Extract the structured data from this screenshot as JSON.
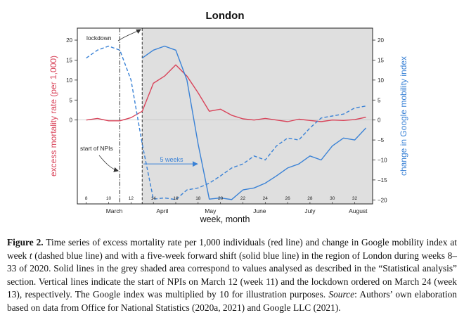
{
  "chart_data": {
    "type": "line",
    "title": "London",
    "xlabel": "week, month",
    "ylabel_left": "excess mortality rate (per 1,000)",
    "ylabel_right": "change in Google mobility index",
    "x_range": [
      7.2,
      33.6
    ],
    "ylim_left": [
      -21,
      23
    ],
    "ylim_right": [
      -21,
      23
    ],
    "left_ticks": [
      "0",
      "5",
      "10",
      "15",
      "20"
    ],
    "right_ticks": [
      "-20",
      "-15",
      "-10",
      "-5",
      "0",
      "5",
      "10",
      "15",
      "20"
    ],
    "week_ticks": [
      "8",
      "10",
      "12",
      "14",
      "16",
      "18",
      "20",
      "22",
      "24",
      "26",
      "28",
      "30",
      "32"
    ],
    "months": [
      {
        "label": "March",
        "x": 10.5
      },
      {
        "label": "April",
        "x": 14.8
      },
      {
        "label": "May",
        "x": 19.1
      },
      {
        "label": "June",
        "x": 23.5
      },
      {
        "label": "July",
        "x": 28.0
      },
      {
        "label": "August",
        "x": 32.3
      }
    ],
    "shade_start_week": 13,
    "vlines": [
      {
        "week": 11,
        "label": "start of NPIs",
        "style": "dashdot"
      },
      {
        "week": 13,
        "label": "lockdown",
        "style": "dashed"
      }
    ],
    "shift_annotation": "5 weeks",
    "shift_from": 13,
    "shift_to": 18,
    "shift_level": -11,
    "series": [
      {
        "name": "excess mortality rate",
        "color": "#d9445a",
        "style": "solid",
        "x": [
          8,
          9,
          10,
          11,
          12,
          13,
          14,
          15,
          16,
          17,
          18,
          19,
          20,
          21,
          22,
          23,
          24,
          25,
          26,
          27,
          28,
          29,
          30,
          31,
          32,
          33
        ],
        "values": [
          0.0,
          0.4,
          -0.2,
          -0.2,
          0.6,
          2.2,
          9.2,
          11.0,
          13.8,
          11.0,
          6.8,
          2.2,
          2.7,
          1.2,
          0.3,
          0.0,
          0.4,
          0.0,
          -0.4,
          0.2,
          -0.1,
          -0.4,
          0.0,
          -0.1,
          0.1,
          0.7
        ]
      },
      {
        "name": "Google mobility index (week t)",
        "color": "#3a82d6",
        "style": "dashed",
        "x": [
          8,
          9,
          10,
          11,
          12,
          13,
          14,
          15,
          16,
          17,
          18,
          19,
          20,
          21,
          22,
          23,
          24,
          25,
          26,
          27,
          28,
          29,
          30,
          31,
          32,
          33
        ],
        "values": [
          15.5,
          17.5,
          18.5,
          17.5,
          10.0,
          -6.0,
          -19.8,
          -19.5,
          -19.9,
          -17.5,
          -17.0,
          -15.8,
          -14.0,
          -12.0,
          -11.0,
          -9.0,
          -10.0,
          -6.5,
          -4.5,
          -5.0,
          -2.0,
          0.5,
          1.0,
          1.5,
          3.0,
          3.5
        ]
      },
      {
        "name": "Google mobility index (shifted 5 weeks)",
        "color": "#3a82d6",
        "style": "solid",
        "x": [
          13,
          14,
          15,
          16,
          17,
          18,
          19,
          20,
          21,
          22,
          23,
          24,
          25,
          26,
          27,
          28,
          29,
          30,
          31,
          32,
          33
        ],
        "values": [
          15.5,
          17.5,
          18.5,
          17.5,
          10.0,
          -6.0,
          -19.8,
          -19.5,
          -19.9,
          -17.5,
          -17.0,
          -15.8,
          -14.0,
          -12.0,
          -11.0,
          -9.0,
          -10.0,
          -6.5,
          -4.5,
          -5.0,
          -2.0
        ]
      }
    ]
  },
  "caption": {
    "label": "Figure 2.",
    "text_1": "Time series of excess mortality rate per 1,000 individuals (red line) and change in Google mobility index at week",
    "var": "t",
    "text_2": "(dashed blue line) and with a five-week forward shift (solid blue line) in the region of London during weeks 8–33 of 2020. Solid lines in the grey shaded area correspond to values analysed as described in the “Statistical analysis” section. Vertical lines indicate the start of NPIs on March 12 (week 11) and the lockdown ordered on March 24 (week 13), respectively. The Google index was multiplied by 10 for illustration purposes.",
    "source_label": "Source",
    "text_3": ": Authors’ own elaboration based on data from Office for National Statistics (2020a, 2021) and Google LLC (2021)."
  }
}
